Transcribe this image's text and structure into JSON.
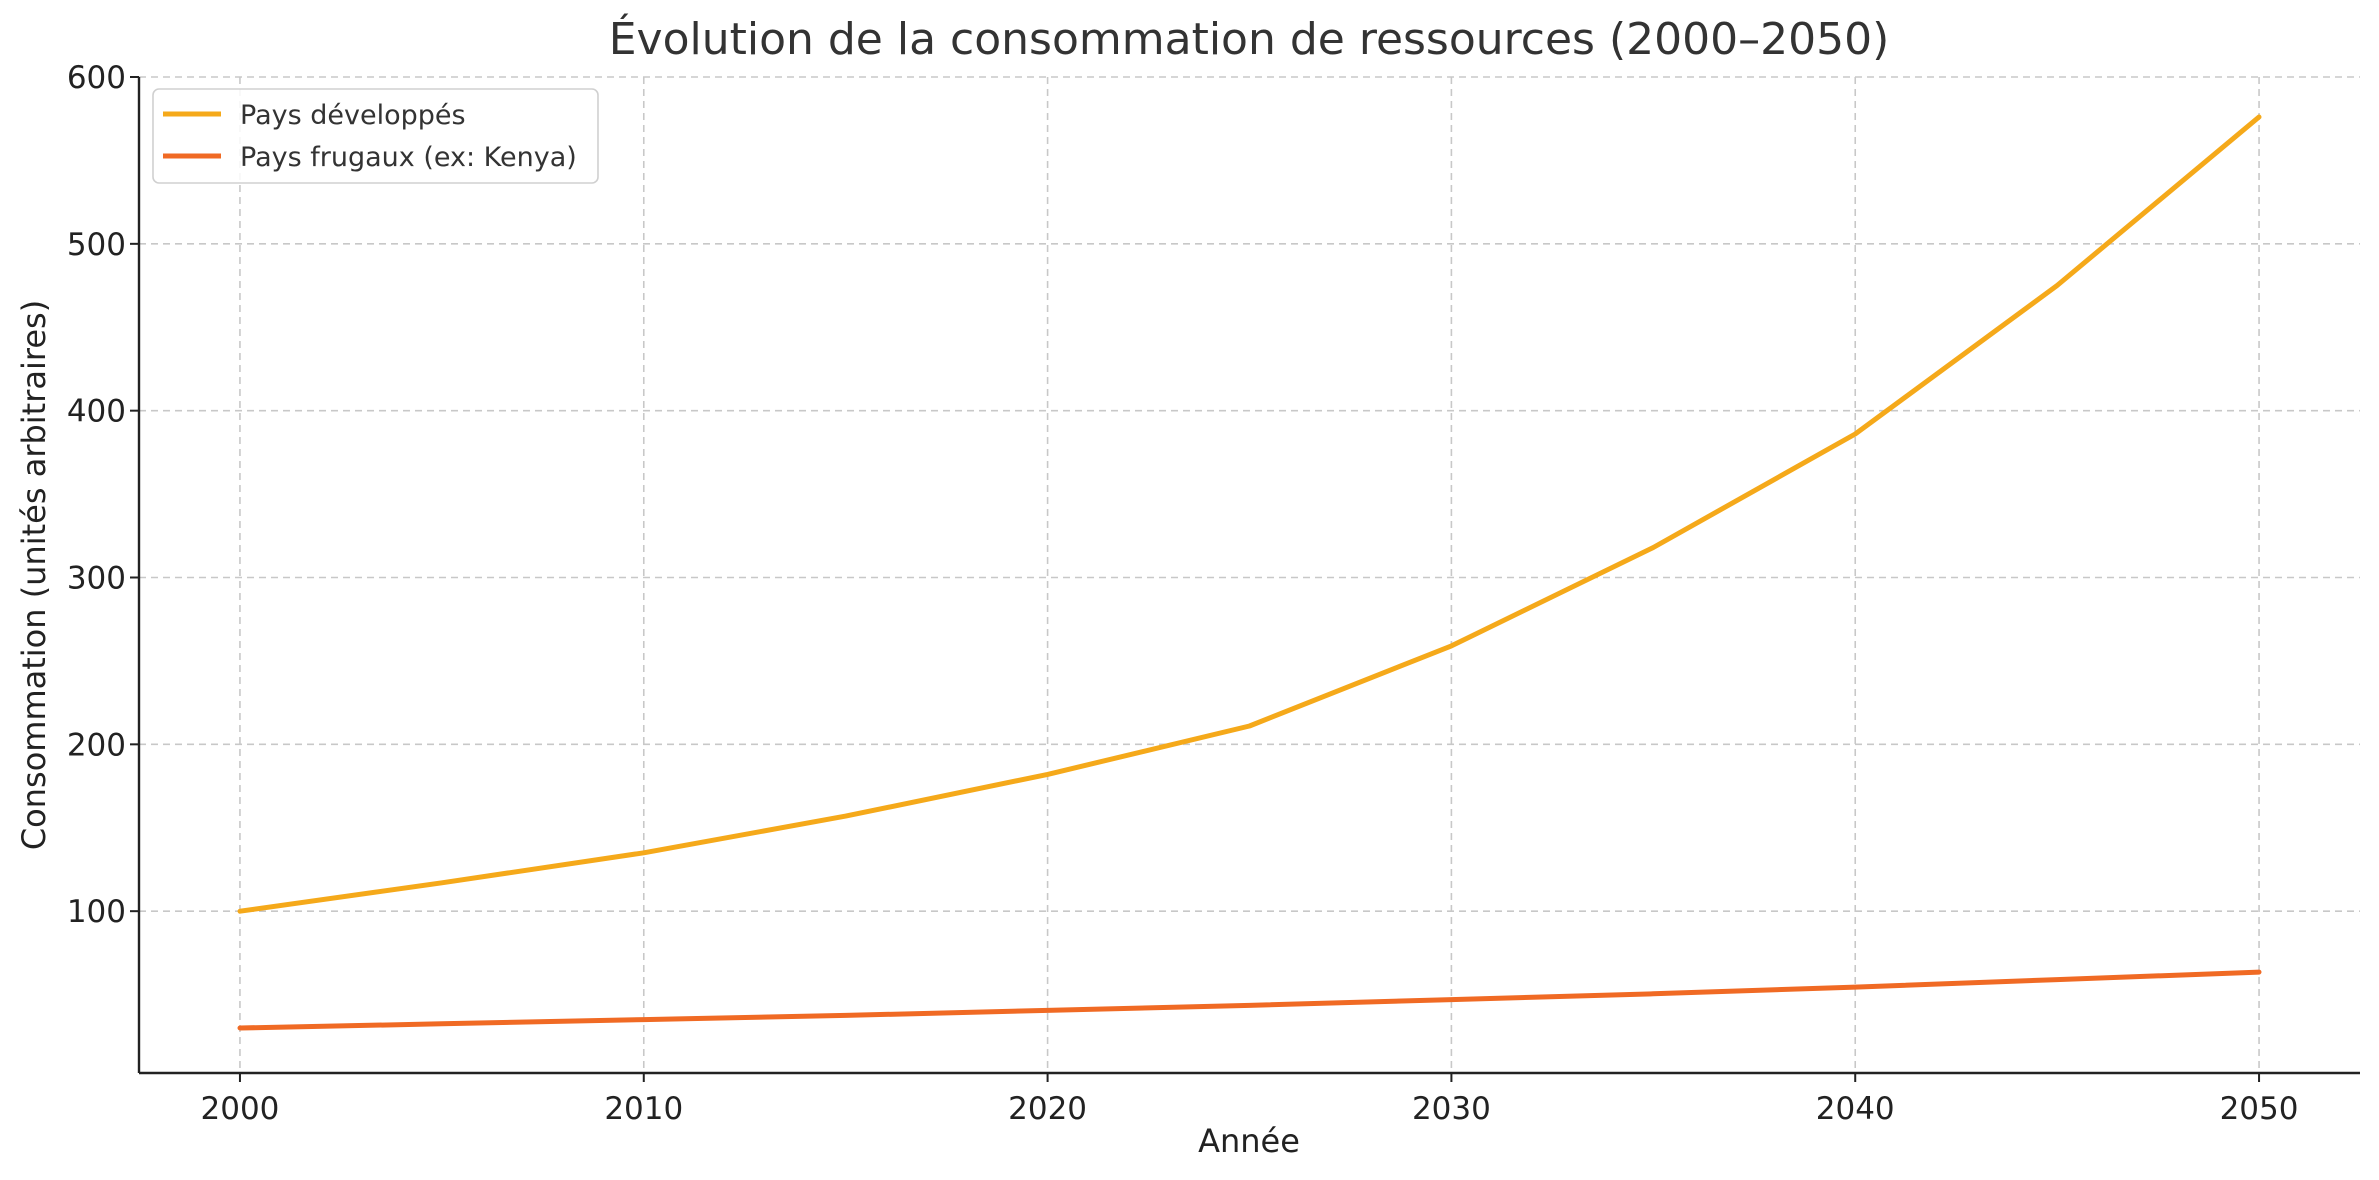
{
  "chart_data": {
    "type": "line",
    "title": "Évolution de la consommation de ressources (2000–2050)",
    "xlabel": "Année",
    "ylabel": "Consommation (unités arbitraires)",
    "xlim": [
      1997.5,
      2052.5
    ],
    "ylim": [
      3,
      600
    ],
    "xticks": [
      2000,
      2010,
      2020,
      2030,
      2040,
      2050
    ],
    "yticks": [
      100,
      200,
      300,
      400,
      500,
      600
    ],
    "grid": true,
    "legend_position": "top-left",
    "x": [
      2000,
      2005,
      2010,
      2015,
      2020,
      2025,
      2030,
      2035,
      2040,
      2045,
      2050
    ],
    "series": [
      {
        "name": "Pays développés",
        "color": "#F5A91A",
        "values": [
          100,
          117,
          135,
          157,
          182,
          211,
          259,
          318,
          386,
          475,
          576
        ]
      },
      {
        "name": "Pays frugaux (ex: Kenya)",
        "color": "#F06A24",
        "values": [
          30,
          32.5,
          35,
          37.5,
          40.5,
          43.5,
          47,
          50.5,
          54.5,
          59,
          63.5
        ]
      }
    ]
  }
}
